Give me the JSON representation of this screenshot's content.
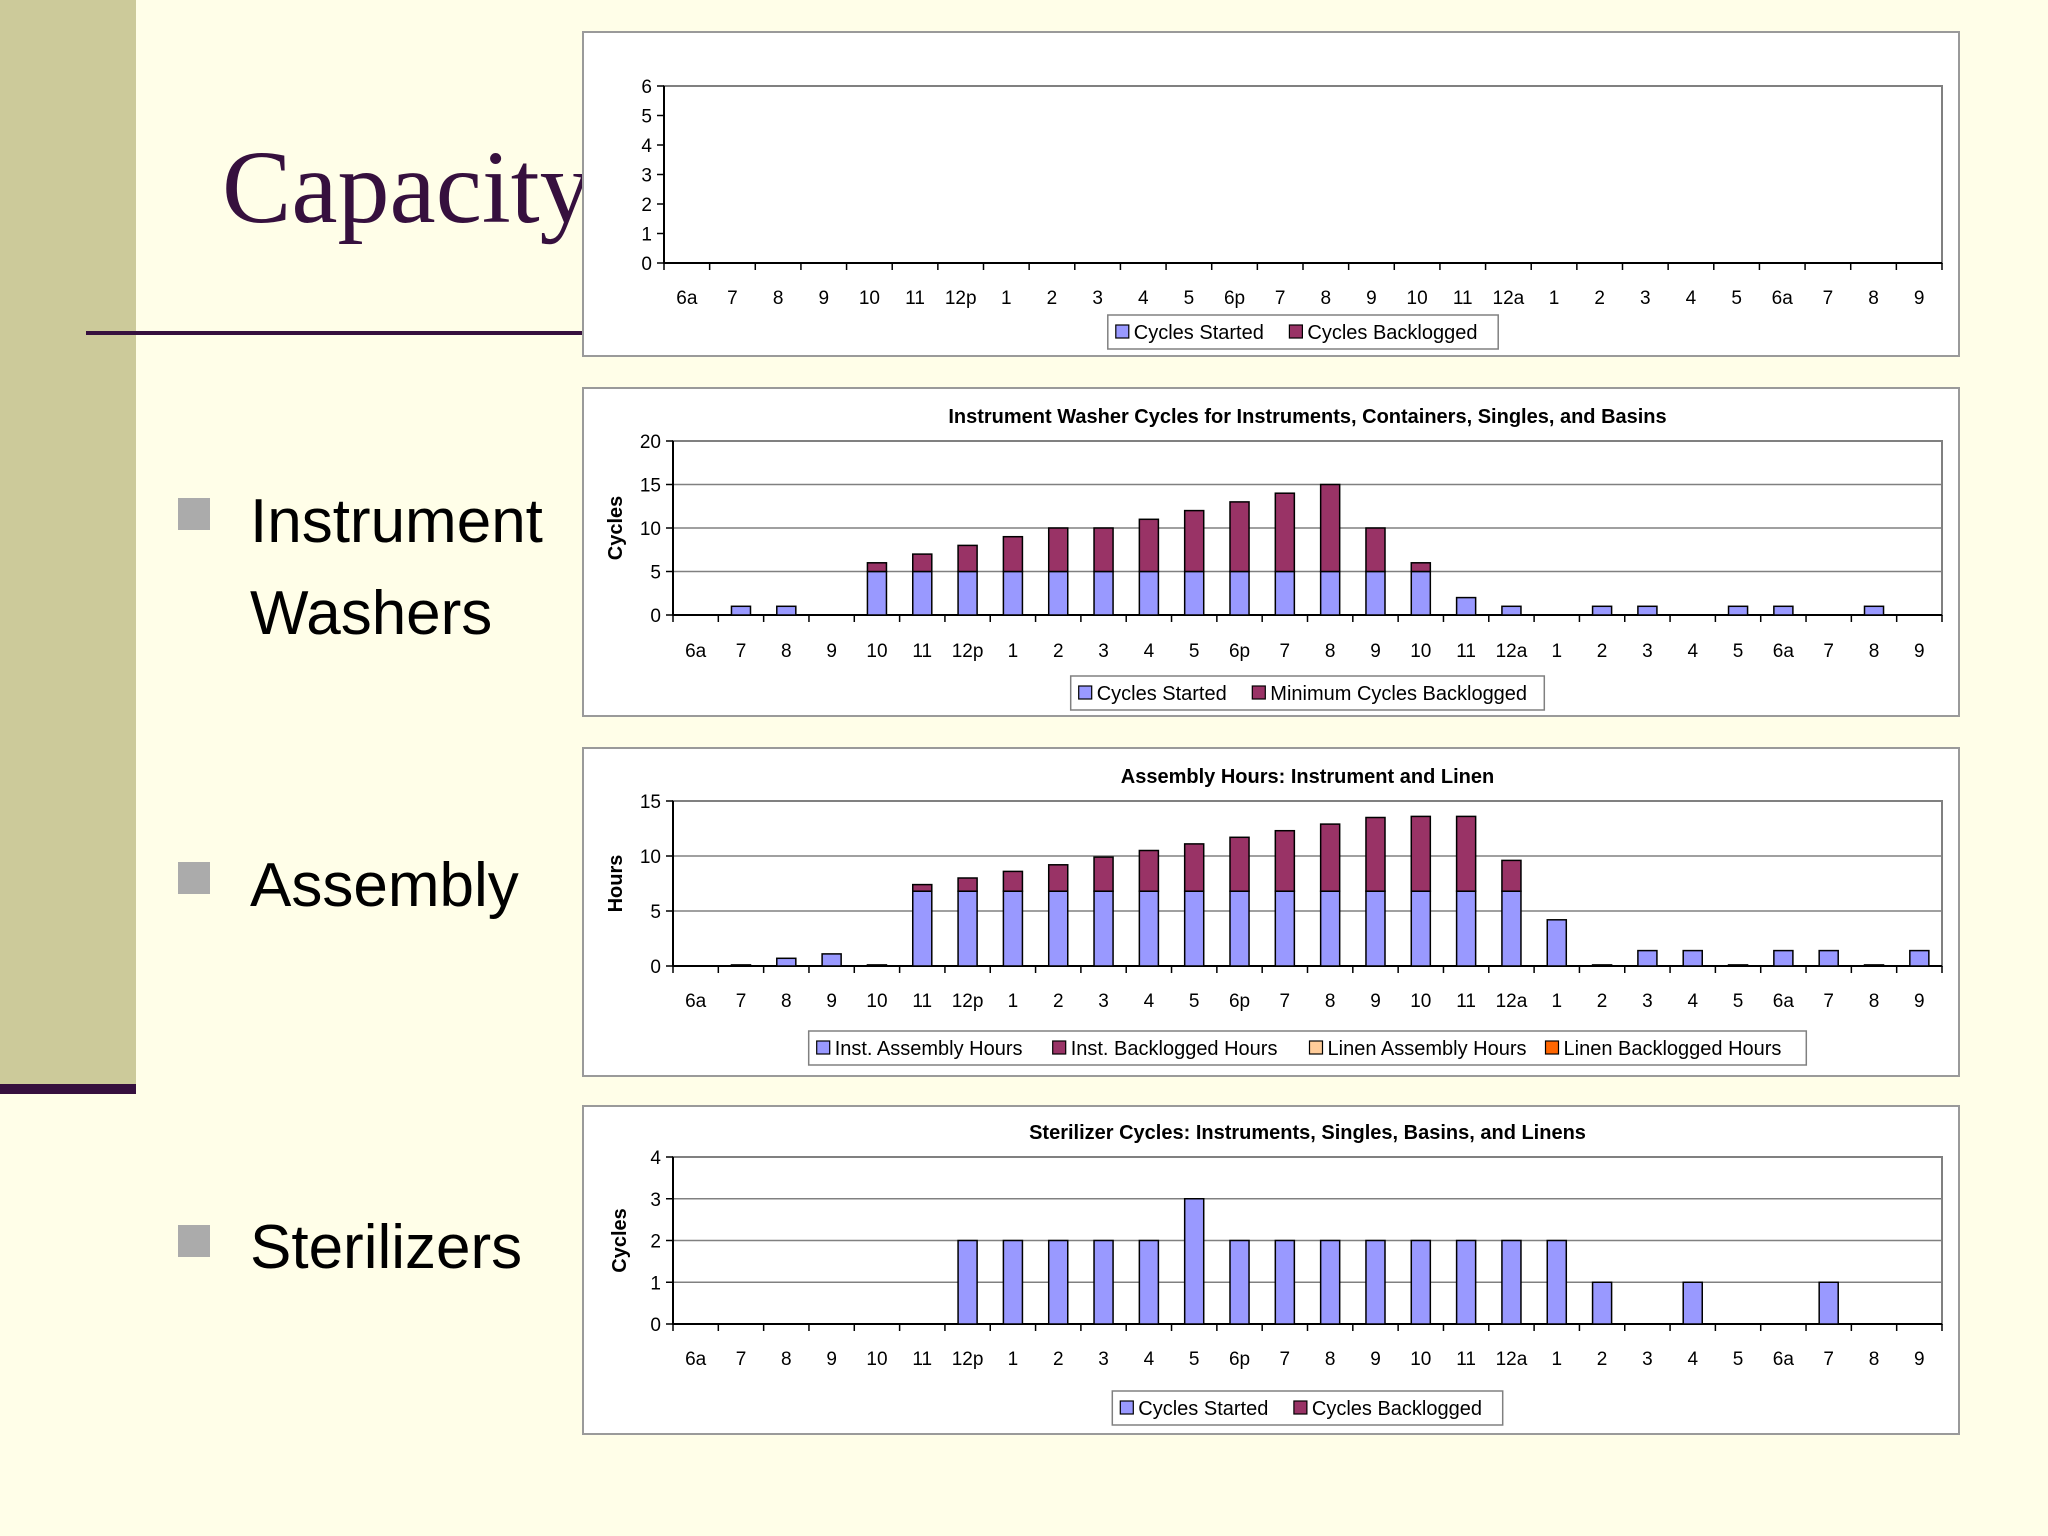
{
  "slide": {
    "title": "Capacity",
    "bullets": [
      {
        "label": "Instrument Washers",
        "lines": [
          "Instrument",
          "Washers"
        ]
      },
      {
        "label": "Assembly",
        "lines": [
          "Assembly"
        ]
      },
      {
        "label": "Sterilizers",
        "lines": [
          "Sterilizers"
        ]
      }
    ]
  },
  "colors": {
    "started": "#9999FF",
    "backlog": "#993366",
    "linen": "#FFCC99",
    "linenBacklog": "#FF6600",
    "slideBg": "#FFFEE8",
    "accent": "#36103E",
    "sidebar": "#CCCA9A"
  },
  "chart_data": [
    {
      "type": "bar",
      "stacked": true,
      "title": "",
      "ylabel": "",
      "xlabel": "",
      "ylim": [
        0,
        6
      ],
      "yticks": [
        0,
        1,
        2,
        3,
        4,
        5,
        6
      ],
      "grid": false,
      "legend": "bottom",
      "categories": [
        "6a",
        "7",
        "8",
        "9",
        "10",
        "11",
        "12p",
        "1",
        "2",
        "3",
        "4",
        "5",
        "6p",
        "7",
        "8",
        "9",
        "10",
        "11",
        "12a",
        "1",
        "2",
        "3",
        "4",
        "5",
        "6a",
        "7",
        "8",
        "9"
      ],
      "series": [
        {
          "name": "Cycles Started",
          "color": "#9999FF",
          "values": [
            0,
            0,
            0,
            0,
            0,
            0,
            0,
            0,
            0,
            0,
            0,
            0,
            0,
            0,
            0,
            0,
            0,
            0,
            0,
            0,
            0,
            0,
            0,
            0,
            0,
            0,
            0,
            0
          ]
        },
        {
          "name": "Cycles Backlogged",
          "color": "#993366",
          "values": [
            0,
            0,
            0,
            0,
            0,
            0,
            0,
            0,
            0,
            0,
            0,
            0,
            0,
            0,
            0,
            0,
            0,
            0,
            0,
            0,
            0,
            0,
            0,
            0,
            0,
            0,
            0,
            0
          ]
        }
      ]
    },
    {
      "type": "bar",
      "stacked": true,
      "title": "Instrument Washer Cycles for Instruments, Containers, Singles, and Basins",
      "ylabel": "Cycles",
      "xlabel": "",
      "ylim": [
        0,
        20
      ],
      "yticks": [
        0,
        5,
        10,
        15,
        20
      ],
      "grid": true,
      "legend": "bottom",
      "categories": [
        "6a",
        "7",
        "8",
        "9",
        "10",
        "11",
        "12p",
        "1",
        "2",
        "3",
        "4",
        "5",
        "6p",
        "7",
        "8",
        "9",
        "10",
        "11",
        "12a",
        "1",
        "2",
        "3",
        "4",
        "5",
        "6a",
        "7",
        "8",
        "9"
      ],
      "series": [
        {
          "name": "Cycles Started",
          "color": "#9999FF",
          "values": [
            0,
            1,
            1,
            0,
            5,
            5,
            5,
            5,
            5,
            5,
            5,
            5,
            5,
            5,
            5,
            5,
            5,
            2,
            1,
            0,
            1,
            1,
            0,
            1,
            1,
            0,
            1,
            0
          ]
        },
        {
          "name": "Minimum Cycles Backlogged",
          "color": "#993366",
          "values": [
            0,
            0,
            0,
            0,
            1,
            2,
            3,
            4,
            5,
            5,
            6,
            7,
            8,
            9,
            10,
            5,
            1,
            0,
            0,
            0,
            0,
            0,
            0,
            0,
            0,
            0,
            0,
            0
          ]
        }
      ]
    },
    {
      "type": "bar",
      "stacked": true,
      "title": "Assembly Hours: Instrument and Linen",
      "ylabel": "Hours",
      "xlabel": "",
      "ylim": [
        0,
        15
      ],
      "yticks": [
        0,
        5,
        10,
        15
      ],
      "grid": true,
      "legend": "bottom",
      "categories": [
        "6a",
        "7",
        "8",
        "9",
        "10",
        "11",
        "12p",
        "1",
        "2",
        "3",
        "4",
        "5",
        "6p",
        "7",
        "8",
        "9",
        "10",
        "11",
        "12a",
        "1",
        "2",
        "3",
        "4",
        "5",
        "6a",
        "7",
        "8",
        "9"
      ],
      "series": [
        {
          "name": "Inst. Assembly Hours",
          "color": "#9999FF",
          "values": [
            0,
            0.1,
            0.7,
            1.1,
            0.1,
            6.8,
            6.8,
            6.8,
            6.8,
            6.8,
            6.8,
            6.8,
            6.8,
            6.8,
            6.8,
            6.8,
            6.8,
            6.8,
            6.8,
            4.2,
            0.1,
            1.4,
            1.4,
            0.1,
            1.4,
            1.4,
            0.1,
            1.4
          ]
        },
        {
          "name": "Inst. Backlogged Hours",
          "color": "#993366",
          "values": [
            0,
            0,
            0,
            0,
            0,
            0.6,
            1.2,
            1.8,
            2.4,
            3.1,
            3.7,
            4.3,
            4.9,
            5.5,
            6.1,
            6.7,
            6.8,
            6.8,
            2.8,
            0,
            0,
            0,
            0,
            0,
            0,
            0,
            0,
            0
          ]
        },
        {
          "name": "Linen Assembly Hours",
          "color": "#FFCC99",
          "values": [
            0,
            0,
            0,
            0,
            0,
            0,
            0,
            0,
            0,
            0,
            0,
            0,
            0,
            0,
            0,
            0,
            0,
            0,
            0,
            0,
            0,
            0,
            0,
            0,
            0,
            0,
            0,
            0
          ]
        },
        {
          "name": "Linen Backlogged Hours",
          "color": "#FF6600",
          "values": [
            0,
            0,
            0,
            0,
            0,
            0,
            0,
            0,
            0,
            0,
            0,
            0,
            0,
            0,
            0,
            0,
            0,
            0,
            0,
            0,
            0,
            0,
            0,
            0,
            0,
            0,
            0,
            0
          ]
        }
      ]
    },
    {
      "type": "bar",
      "stacked": true,
      "title": "Sterilizer Cycles: Instruments, Singles, Basins, and Linens",
      "ylabel": "Cycles",
      "xlabel": "",
      "ylim": [
        0,
        4
      ],
      "yticks": [
        0,
        1,
        2,
        3,
        4
      ],
      "grid": true,
      "legend": "bottom",
      "categories": [
        "6a",
        "7",
        "8",
        "9",
        "10",
        "11",
        "12p",
        "1",
        "2",
        "3",
        "4",
        "5",
        "6p",
        "7",
        "8",
        "9",
        "10",
        "11",
        "12a",
        "1",
        "2",
        "3",
        "4",
        "5",
        "6a",
        "7",
        "8",
        "9"
      ],
      "series": [
        {
          "name": "Cycles Started",
          "color": "#9999FF",
          "values": [
            0,
            0,
            0,
            0,
            0,
            0,
            2,
            2,
            2,
            2,
            2,
            3,
            2,
            2,
            2,
            2,
            2,
            2,
            2,
            2,
            1,
            0,
            1,
            0,
            0,
            1,
            0,
            0
          ]
        },
        {
          "name": "Cycles Backlogged",
          "color": "#993366",
          "values": [
            0,
            0,
            0,
            0,
            0,
            0,
            0,
            0,
            0,
            0,
            0,
            0,
            0,
            0,
            0,
            0,
            0,
            0,
            0,
            0,
            0,
            0,
            0,
            0,
            0,
            0,
            0,
            0
          ]
        }
      ]
    }
  ]
}
